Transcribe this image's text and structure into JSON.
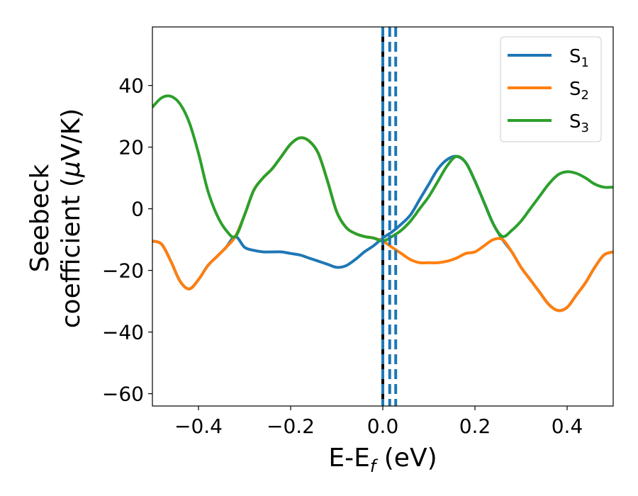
{
  "chart_data": {
    "type": "line",
    "xlabel_main": "E-E",
    "xlabel_sub": "f",
    "xlabel_unit": " (eV)",
    "ylabel_line1": "Seebeck",
    "ylabel_line2_pre": "coefficient  (",
    "ylabel_mu": "μ",
    "ylabel_line2_post": "V/K)",
    "xlim": [
      -0.5,
      0.5
    ],
    "ylim": [
      -64,
      59
    ],
    "xticks": [
      -0.4,
      -0.2,
      0.0,
      0.2,
      0.4
    ],
    "xtick_labels": [
      "−0.4",
      "−0.2",
      "0.0",
      "0.2",
      "0.4"
    ],
    "yticks": [
      40,
      20,
      0,
      -20,
      -40,
      -60
    ],
    "ytick_labels": [
      "40",
      "20",
      "0",
      "−20",
      "−40",
      "−60"
    ],
    "grid": false,
    "legend_position": "top-right",
    "vertical_lines": [
      {
        "x": 0.0,
        "style": "solid",
        "color": "#000000"
      },
      {
        "x": 0.0,
        "style": "dashed",
        "color": "#1f77b4"
      },
      {
        "x": 0.015,
        "style": "dashed",
        "color": "#1f77b4"
      },
      {
        "x": 0.028,
        "style": "dashed",
        "color": "#1f77b4"
      }
    ],
    "x": [
      -0.5,
      -0.48,
      -0.46,
      -0.44,
      -0.42,
      -0.4,
      -0.38,
      -0.36,
      -0.34,
      -0.32,
      -0.3,
      -0.28,
      -0.26,
      -0.24,
      -0.22,
      -0.2,
      -0.18,
      -0.16,
      -0.14,
      -0.12,
      -0.1,
      -0.08,
      -0.06,
      -0.04,
      -0.02,
      0.0,
      0.02,
      0.04,
      0.06,
      0.08,
      0.1,
      0.12,
      0.14,
      0.16,
      0.18,
      0.2,
      0.22,
      0.24,
      0.26,
      0.28,
      0.3,
      0.32,
      0.34,
      0.36,
      0.38,
      0.4,
      0.42,
      0.44,
      0.46,
      0.48,
      0.5
    ],
    "series": [
      {
        "name_main": "S",
        "name_sub": "1",
        "color": "#1f77b4",
        "values": [
          -10.5,
          -11.5,
          -17,
          -23.5,
          -26,
          -23,
          -18.5,
          -15.5,
          -12.5,
          -9,
          -12.5,
          -13.5,
          -14,
          -14,
          -14,
          -14.5,
          -15,
          -16,
          -17,
          -18,
          -19,
          -18.5,
          -16.5,
          -14,
          -12,
          -9.5,
          -7.5,
          -5,
          -2,
          3,
          8,
          13,
          16,
          17,
          15,
          9,
          2,
          -5,
          -10,
          -14,
          -19,
          -23,
          -27,
          -31,
          -33,
          -32,
          -28,
          -24,
          -19,
          -15,
          -14
        ]
      },
      {
        "name_main": "S",
        "name_sub": "2",
        "color": "#ff7f0e",
        "values": [
          -10.5,
          -11.5,
          -17,
          -23.5,
          -26,
          -23,
          -18.5,
          -15.5,
          -12.5,
          -9,
          -2,
          6,
          10,
          13,
          17,
          21,
          23,
          22,
          18,
          9,
          -1,
          -6,
          -8,
          -9,
          -9.5,
          -10.5,
          -12.5,
          -14.5,
          -16.5,
          -17.5,
          -17.5,
          -17.5,
          -17,
          -16,
          -14.5,
          -14,
          -12,
          -10,
          -10,
          -14,
          -19,
          -23,
          -27,
          -31,
          -33,
          -32,
          -28,
          -24,
          -19,
          -15,
          -14
        ]
      },
      {
        "name_main": "S",
        "name_sub": "3",
        "color": "#2ca02c",
        "values": [
          33,
          36,
          36.5,
          34,
          28,
          18,
          6,
          -2,
          -7,
          -9,
          -2,
          6,
          10,
          13,
          17,
          21,
          23,
          22,
          18,
          9,
          -1,
          -6,
          -8,
          -9,
          -9.5,
          -10.5,
          -9,
          -7,
          -4,
          0,
          4,
          9,
          14,
          17,
          15,
          9,
          2,
          -5,
          -9,
          -7,
          -4,
          0,
          4,
          8,
          11,
          12,
          11.5,
          10,
          8,
          7,
          7
        ]
      }
    ]
  }
}
